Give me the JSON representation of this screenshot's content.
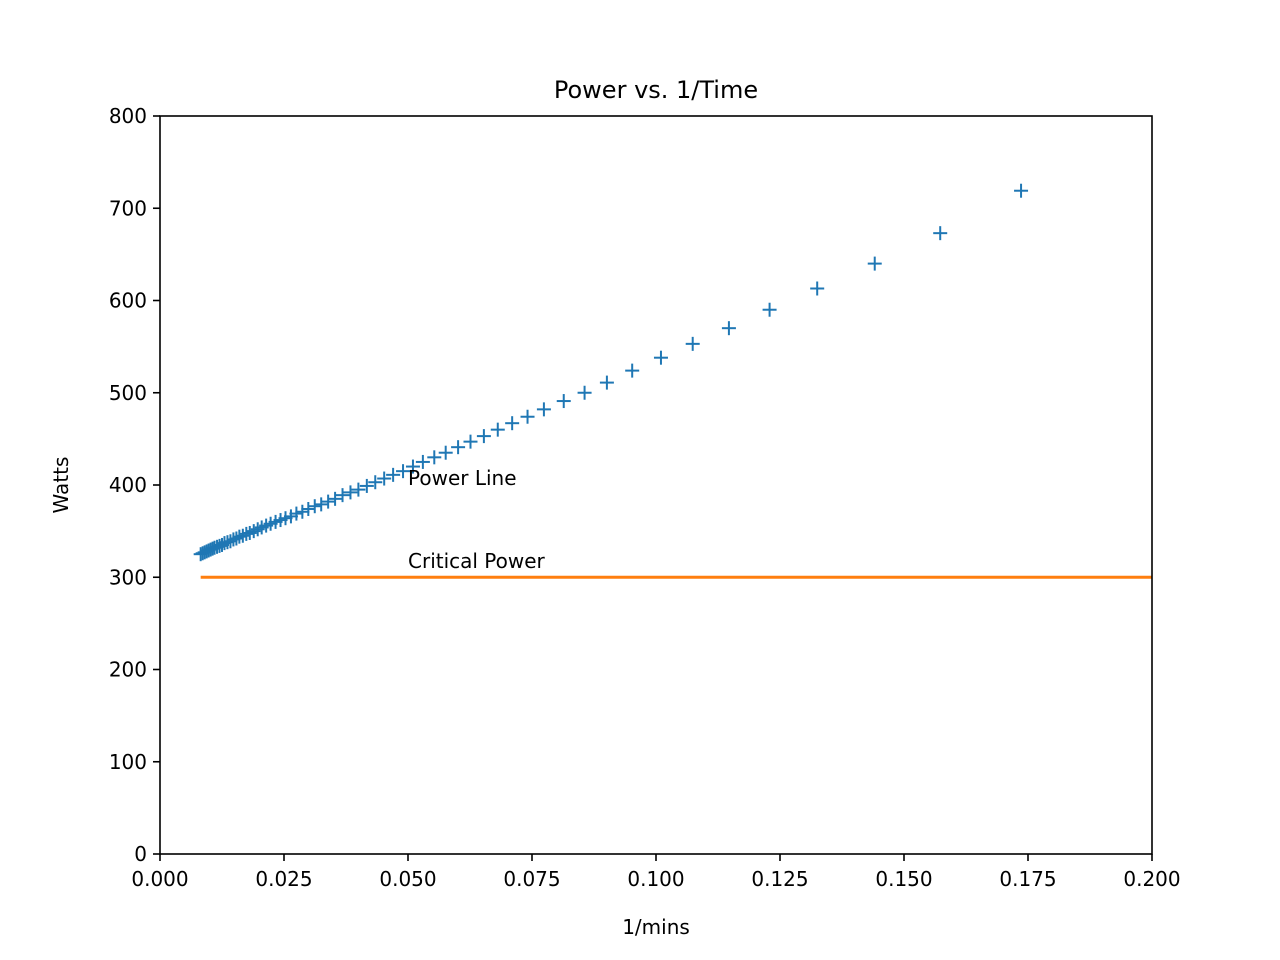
{
  "chart_data": {
    "type": "scatter",
    "title": "Power vs. 1/Time",
    "xlabel": "1/mins",
    "ylabel": "Watts",
    "xlim": [
      0.0,
      0.2
    ],
    "ylim": [
      0,
      800
    ],
    "x_ticks": [
      0.0,
      0.025,
      0.05,
      0.075,
      0.1,
      0.125,
      0.15,
      0.175,
      0.2
    ],
    "x_tick_labels": [
      "0.000",
      "0.025",
      "0.050",
      "0.075",
      "0.100",
      "0.125",
      "0.150",
      "0.175",
      "0.200"
    ],
    "y_ticks": [
      0,
      100,
      200,
      300,
      400,
      500,
      600,
      700,
      800
    ],
    "y_tick_labels": [
      "0",
      "100",
      "200",
      "300",
      "400",
      "500",
      "600",
      "700",
      "800"
    ],
    "grid": false,
    "series": [
      {
        "marker": "+",
        "color": "#1f77b4",
        "x": [
          0.0082,
          0.0086,
          0.009,
          0.0094,
          0.0098,
          0.0102,
          0.0106,
          0.011,
          0.0115,
          0.012,
          0.0125,
          0.013,
          0.0136,
          0.0142,
          0.0148,
          0.0154,
          0.016,
          0.0167,
          0.0174,
          0.0181,
          0.0189,
          0.0197,
          0.0205,
          0.0214,
          0.0223,
          0.0233,
          0.0243,
          0.0253,
          0.0264,
          0.0275,
          0.0287,
          0.0299,
          0.0312,
          0.0325,
          0.0339,
          0.0353,
          0.0368,
          0.0384,
          0.04,
          0.0417,
          0.0434,
          0.0452,
          0.047,
          0.049,
          0.051,
          0.053,
          0.0553,
          0.0576,
          0.0601,
          0.0626,
          0.0653,
          0.0681,
          0.071,
          0.0741,
          0.0774,
          0.0814,
          0.0856,
          0.0901,
          0.0952,
          0.101,
          0.1074,
          0.1147,
          0.1229,
          0.1325,
          0.1441,
          0.1573,
          0.1736
        ],
        "y": [
          325,
          326,
          327,
          328,
          329,
          330,
          331,
          332,
          333,
          334,
          335,
          337,
          338,
          339,
          341,
          342,
          344,
          345,
          347,
          348,
          350,
          352,
          354,
          356,
          358,
          360,
          362,
          364,
          366,
          369,
          371,
          374,
          377,
          379,
          382,
          385,
          389,
          392,
          395,
          399,
          403,
          407,
          411,
          415,
          420,
          425,
          430,
          435,
          441,
          447,
          453,
          460,
          467,
          474,
          482,
          491,
          500,
          511,
          524,
          538,
          553,
          570,
          590,
          613,
          640,
          673,
          719
        ]
      },
      {
        "type": "line",
        "color": "#ff7f0e",
        "x": [
          0.0082,
          0.2
        ],
        "y": [
          300,
          300
        ]
      }
    ],
    "annotations": [
      {
        "text": "Power Line",
        "x": 0.05,
        "y": 400
      },
      {
        "text": "Critical Power",
        "x": 0.05,
        "y": 310
      }
    ]
  }
}
